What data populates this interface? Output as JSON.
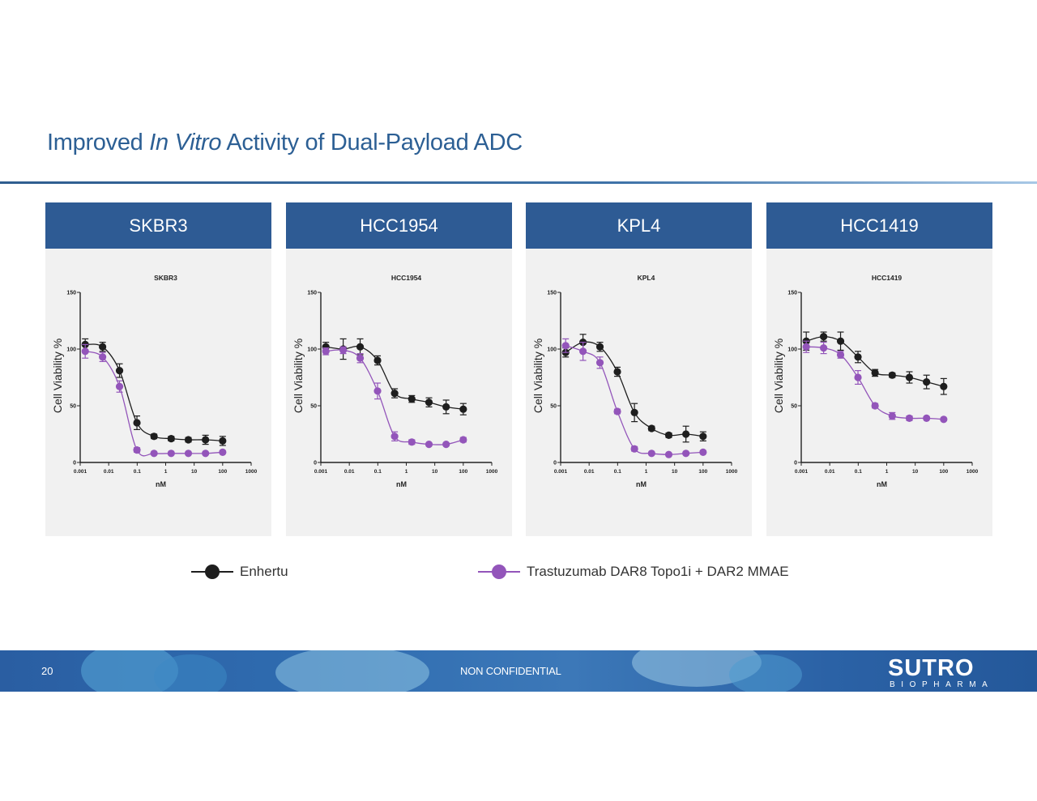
{
  "slide": {
    "title_pre": "Improved ",
    "title_em": "In Vitro",
    "title_post": " Activity of Dual-Payload ADC",
    "page_number": "20",
    "footer_text": "NON CONFIDENTIAL",
    "logo_main": "SUTRO",
    "logo_sub": "BIOPHARMA",
    "colors": {
      "accent": "#2e5b94",
      "title": "#2c5f94",
      "panel_bg": "#f1f1f1"
    }
  },
  "legend": [
    {
      "label": "Enhertu",
      "color": "#1e1e1e"
    },
    {
      "label": "Trastuzumab DAR8 Topo1i + DAR2 MMAE",
      "color": "#9355ba"
    }
  ],
  "panels": [
    {
      "header": "SKBR3"
    },
    {
      "header": "HCC1954"
    },
    {
      "header": "KPL4"
    },
    {
      "header": "HCC1419"
    }
  ],
  "chart_data": [
    {
      "type": "scatter",
      "title": "SKBR3",
      "xlabel": "nM",
      "ylabel": "Cell Viability %",
      "xscale": "log",
      "xlim": [
        0.001,
        1000
      ],
      "ylim": [
        0,
        150
      ],
      "xticks": [
        "0.001",
        "0.01",
        "0.1",
        "1",
        "10",
        "100",
        "1000"
      ],
      "yticks": [
        "0",
        "50",
        "100",
        "150"
      ],
      "x": [
        0.0015,
        0.0061,
        0.024,
        0.098,
        0.39,
        1.56,
        6.25,
        25,
        100
      ],
      "series": [
        {
          "name": "Enhertu",
          "color": "#1e1e1e",
          "values": [
            104,
            102,
            81,
            35,
            23,
            21,
            20,
            20,
            19
          ],
          "errors": [
            5,
            4,
            6,
            6,
            2,
            2,
            2,
            4,
            4
          ]
        },
        {
          "name": "Trastuzumab DAR8 Topo1i + DAR2 MMAE",
          "color": "#9355ba",
          "values": [
            98,
            93,
            67,
            11,
            8,
            8,
            8,
            8,
            9
          ],
          "errors": [
            6,
            4,
            5,
            2,
            1,
            1,
            1,
            1,
            1
          ]
        }
      ]
    },
    {
      "type": "scatter",
      "title": "HCC1954",
      "xlabel": "nM",
      "ylabel": "Cell Viability %",
      "xscale": "log",
      "xlim": [
        0.001,
        1000
      ],
      "ylim": [
        0,
        150
      ],
      "xticks": [
        "0.001",
        "0.01",
        "0.1",
        "1",
        "10",
        "100",
        "1000"
      ],
      "yticks": [
        "0",
        "50",
        "100",
        "150"
      ],
      "x": [
        0.0015,
        0.0061,
        0.024,
        0.098,
        0.39,
        1.56,
        6.25,
        25,
        100
      ],
      "series": [
        {
          "name": "Enhertu",
          "color": "#1e1e1e",
          "values": [
            102,
            100,
            102,
            90,
            61,
            56,
            53,
            49,
            47
          ],
          "errors": [
            4,
            9,
            7,
            4,
            4,
            3,
            4,
            6,
            5
          ]
        },
        {
          "name": "Trastuzumab DAR8 Topo1i + DAR2 MMAE",
          "color": "#9355ba",
          "values": [
            98,
            99,
            92,
            63,
            23,
            18,
            16,
            16,
            20
          ],
          "errors": [
            3,
            3,
            4,
            7,
            4,
            2,
            1,
            1,
            2
          ]
        }
      ]
    },
    {
      "type": "scatter",
      "title": "KPL4",
      "xlabel": "nM",
      "ylabel": "Cell Viability %",
      "xscale": "log",
      "xlim": [
        0.001,
        1000
      ],
      "ylim": [
        0,
        150
      ],
      "xticks": [
        "0.001",
        "0.01",
        "0.1",
        "1",
        "10",
        "100",
        "1000"
      ],
      "yticks": [
        "0",
        "50",
        "100",
        "150"
      ],
      "x": [
        0.0015,
        0.0061,
        0.024,
        0.098,
        0.39,
        1.56,
        6.25,
        25,
        100
      ],
      "series": [
        {
          "name": "Enhertu",
          "color": "#1e1e1e",
          "values": [
            97,
            106,
            102,
            80,
            44,
            30,
            24,
            25,
            23
          ],
          "errors": [
            4,
            7,
            4,
            4,
            8,
            2,
            2,
            7,
            4
          ]
        },
        {
          "name": "Trastuzumab DAR8 Topo1i + DAR2 MMAE",
          "color": "#9355ba",
          "values": [
            103,
            98,
            88,
            45,
            12,
            8,
            7,
            8,
            9
          ],
          "errors": [
            6,
            8,
            5,
            2,
            2,
            1,
            1,
            1,
            1
          ]
        }
      ]
    },
    {
      "type": "scatter",
      "title": "HCC1419",
      "xlabel": "nM",
      "ylabel": "Cell Viability %",
      "xscale": "log",
      "xlim": [
        0.001,
        1000
      ],
      "ylim": [
        0,
        150
      ],
      "xticks": [
        "0.001",
        "0.01",
        "0.1",
        "1",
        "10",
        "100",
        "1000"
      ],
      "yticks": [
        "0",
        "50",
        "100",
        "150"
      ],
      "x": [
        0.0015,
        0.0061,
        0.024,
        0.098,
        0.39,
        1.56,
        6.25,
        25,
        100
      ],
      "series": [
        {
          "name": "Enhertu",
          "color": "#1e1e1e",
          "values": [
            107,
            111,
            107,
            93,
            79,
            77,
            75,
            71,
            67
          ],
          "errors": [
            8,
            4,
            8,
            5,
            3,
            2,
            5,
            6,
            7
          ]
        },
        {
          "name": "Trastuzumab DAR8 Topo1i + DAR2 MMAE",
          "color": "#9355ba",
          "values": [
            102,
            101,
            95,
            75,
            50,
            41,
            39,
            39,
            38
          ],
          "errors": [
            5,
            5,
            3,
            6,
            2,
            3,
            2,
            1,
            1
          ]
        }
      ]
    }
  ]
}
